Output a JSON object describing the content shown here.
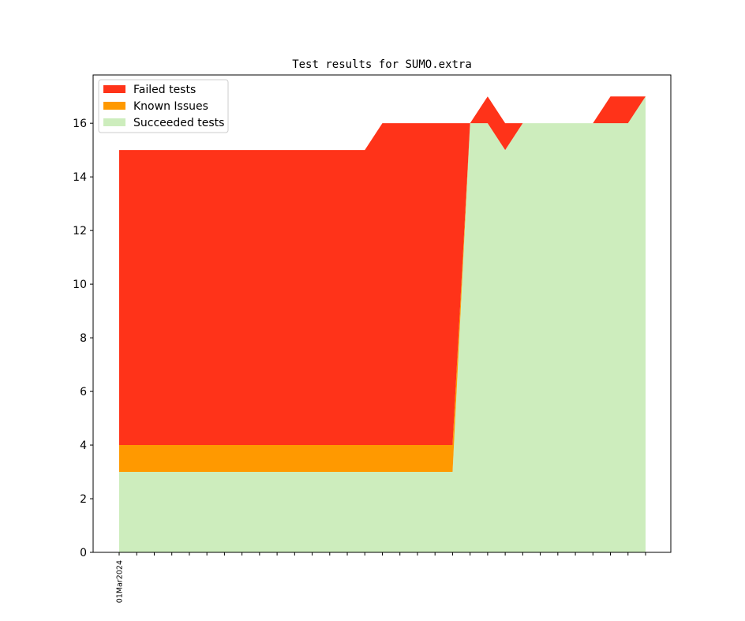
{
  "chart_data": {
    "type": "area",
    "stacked": true,
    "title": "Test results for SUMO.extra",
    "xlabel": "",
    "ylabel": "",
    "x": [
      0,
      1,
      2,
      3,
      4,
      5,
      6,
      7,
      8,
      9,
      10,
      11,
      12,
      13,
      14,
      15,
      16,
      17,
      18,
      19,
      20,
      21,
      22,
      23,
      24,
      25,
      26,
      27,
      28,
      29,
      30
    ],
    "x_tick_labels": [
      {
        "index": 0,
        "label": "01Mar2024"
      }
    ],
    "ylim": [
      0,
      17.8
    ],
    "y_ticks": [
      0,
      2,
      4,
      6,
      8,
      10,
      12,
      14,
      16
    ],
    "grid": false,
    "legend_position": "top-left",
    "series": [
      {
        "name": "Succeeded tests",
        "color": "#cdedbd",
        "values": [
          3,
          3,
          3,
          3,
          3,
          3,
          3,
          3,
          3,
          3,
          3,
          3,
          3,
          3,
          3,
          3,
          3,
          3,
          3,
          3,
          16,
          16,
          15,
          16,
          16,
          16,
          16,
          16,
          16,
          16,
          17
        ]
      },
      {
        "name": "Known Issues",
        "color": "#ff9900",
        "values": [
          1,
          1,
          1,
          1,
          1,
          1,
          1,
          1,
          1,
          1,
          1,
          1,
          1,
          1,
          1,
          1,
          1,
          1,
          1,
          1,
          0,
          0,
          0,
          0,
          0,
          0,
          0,
          0,
          0,
          0,
          0
        ]
      },
      {
        "name": "Failed tests",
        "color": "#ff3319",
        "values": [
          11,
          11,
          11,
          11,
          11,
          11,
          11,
          11,
          11,
          11,
          11,
          11,
          11,
          11,
          11,
          12,
          12,
          12,
          12,
          12,
          0,
          1,
          1,
          0,
          0,
          0,
          0,
          0,
          1,
          1,
          0
        ]
      }
    ],
    "legend_order": [
      "Failed tests",
      "Known Issues",
      "Succeeded tests"
    ]
  }
}
